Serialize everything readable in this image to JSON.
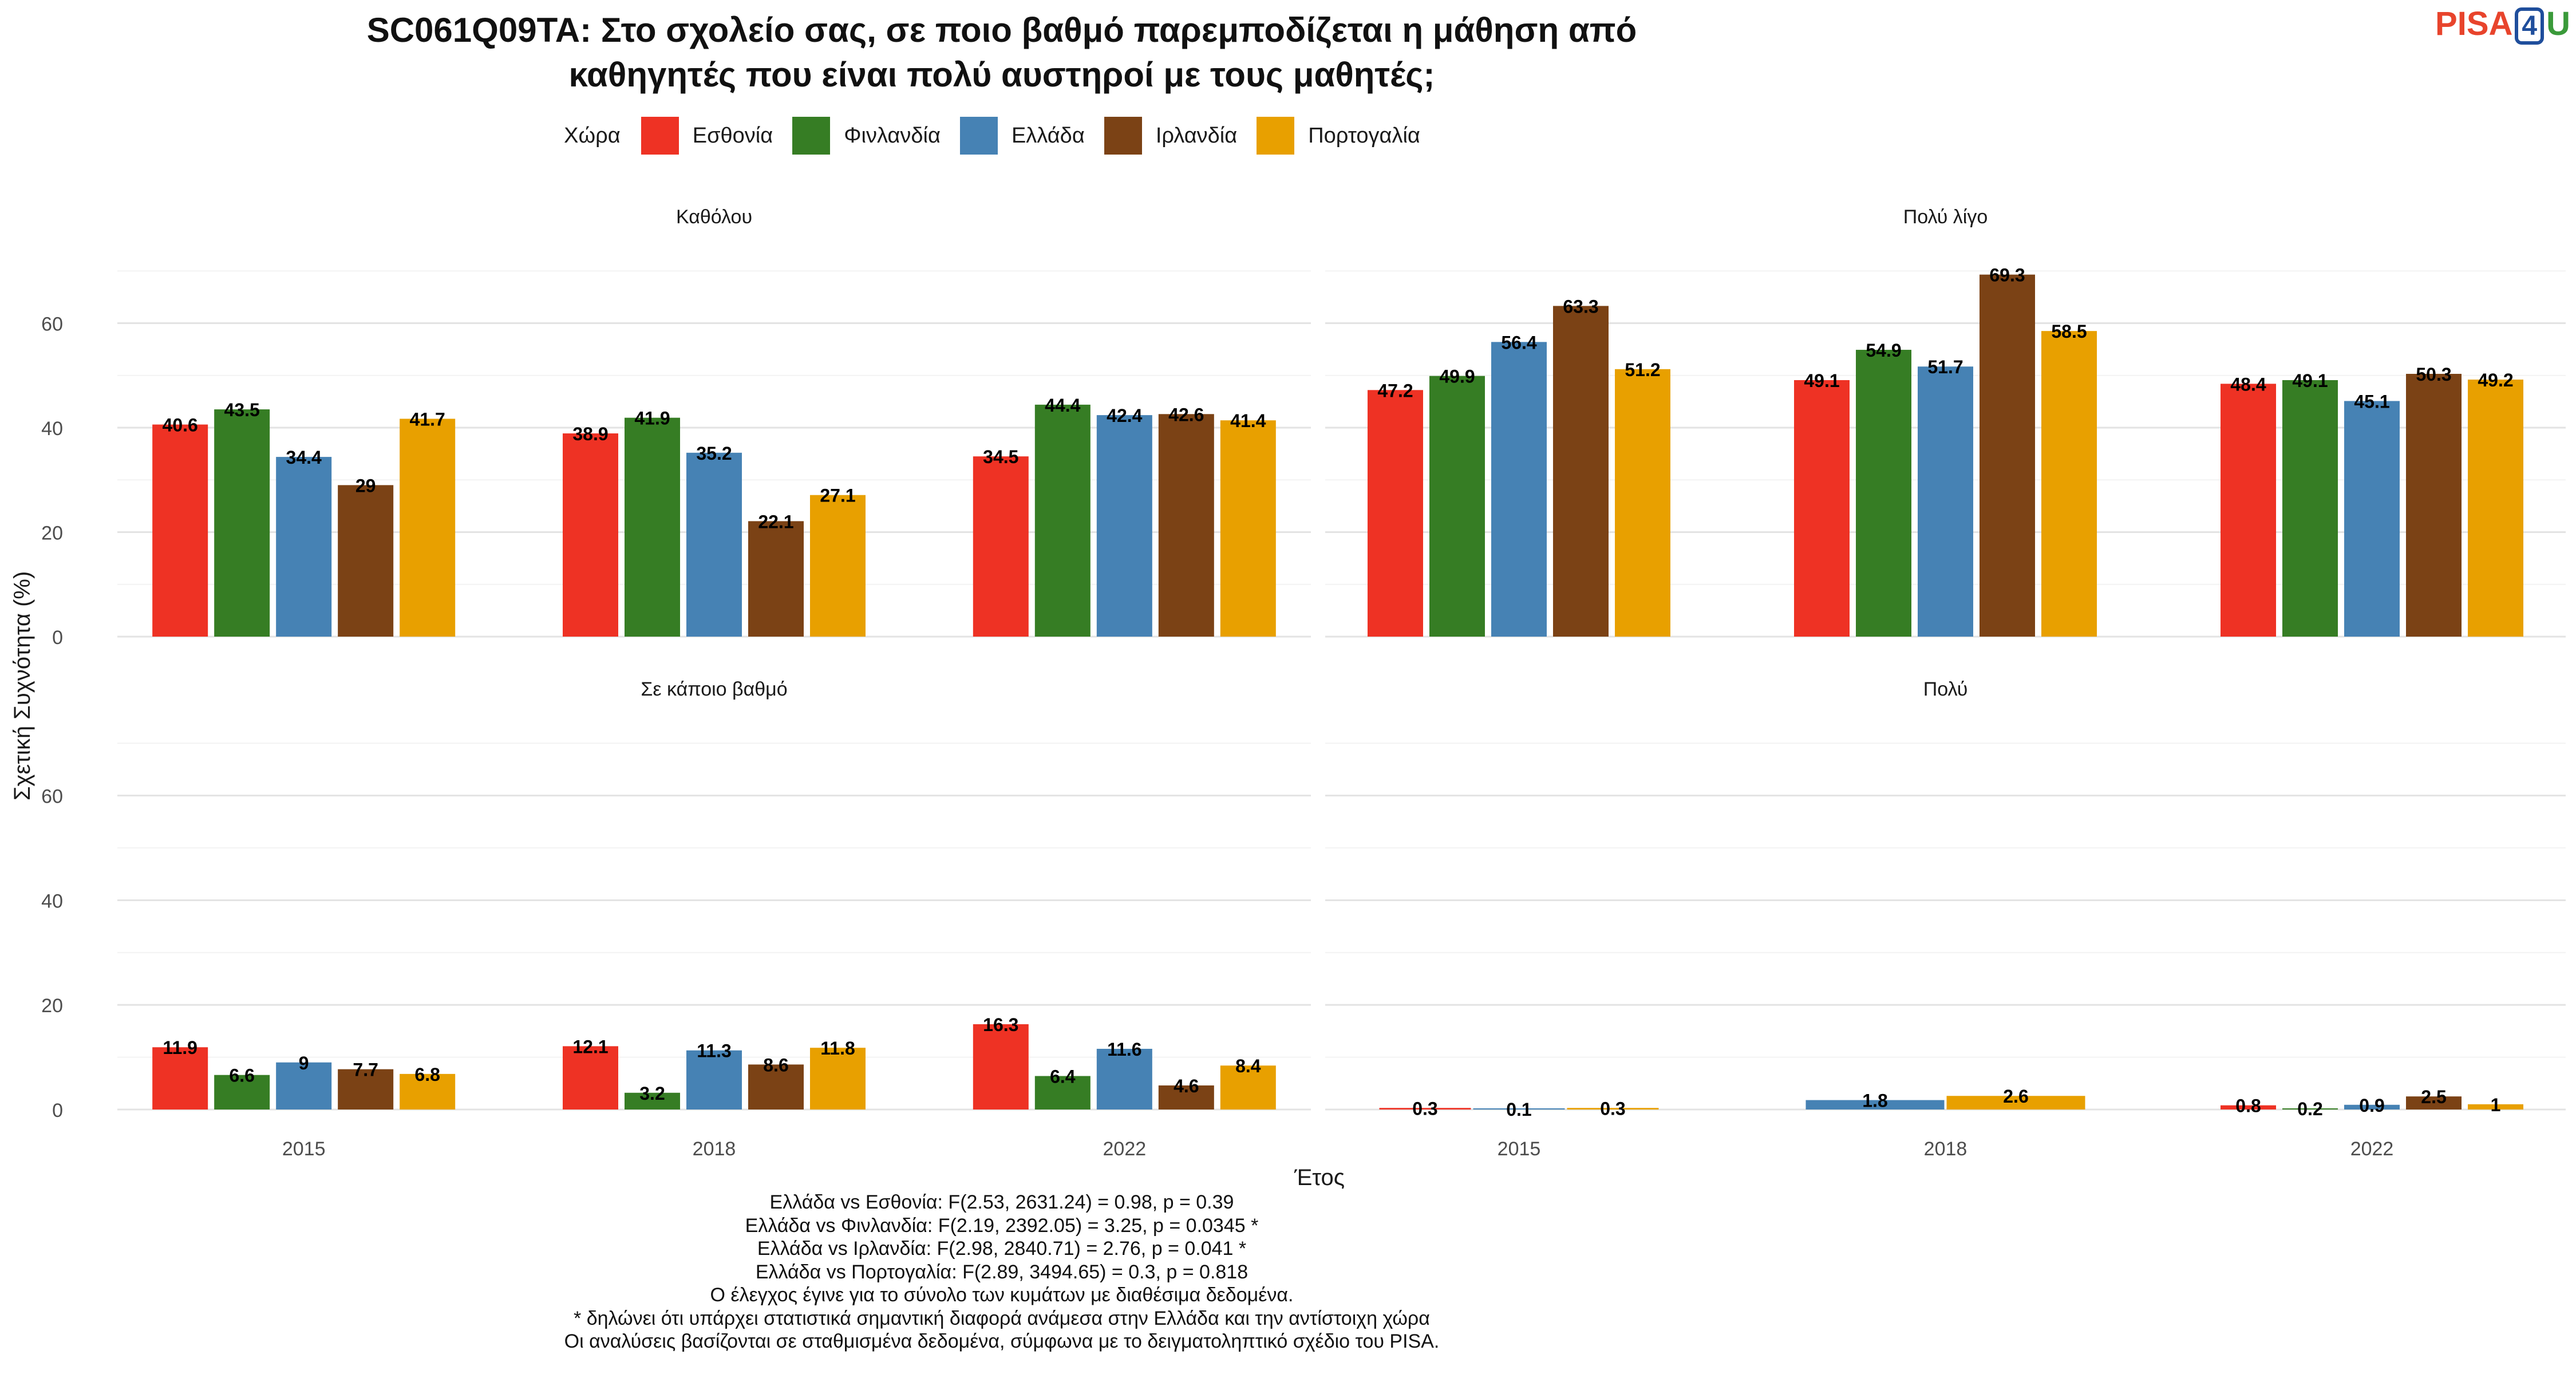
{
  "title_lines": [
    "SC061Q09TA: Στο σχολείο σας, σε ποιο βαθμό παρεμποδίζεται η μάθηση από",
    "καθηγητές που είναι πολύ αυστηροί με τους μαθητές;"
  ],
  "logo": {
    "left": "PISA",
    "boxed": "4",
    "right": "U"
  },
  "legend": {
    "title": "Χώρα",
    "items": [
      {
        "name": "Εσθονία",
        "color": "#EE3224"
      },
      {
        "name": "Φινλανδία",
        "color": "#367D24"
      },
      {
        "name": "Ελλάδα",
        "color": "#4682B4"
      },
      {
        "name": "Ιρλανδία",
        "color": "#7B4215"
      },
      {
        "name": "Πορτογαλία",
        "color": "#E8A000"
      }
    ]
  },
  "chart_data": {
    "type": "bar",
    "xlabel": "Έτος",
    "ylabel": "Σχετική Συχνότητα (%)",
    "ylim": [
      0,
      72
    ],
    "yticks": [
      0,
      20,
      40,
      60
    ],
    "grid": true,
    "legend_position": "top",
    "categories": [
      "2015",
      "2018",
      "2022"
    ],
    "series_names": [
      "Εσθονία",
      "Φινλανδία",
      "Ελλάδα",
      "Ιρλανδία",
      "Πορτογαλία"
    ],
    "panels": [
      {
        "title": "Καθόλου",
        "groups": [
          {
            "year": "2015",
            "bars": [
              {
                "country": "Εσθονία",
                "value": 40.6
              },
              {
                "country": "Φινλανδία",
                "value": 43.5
              },
              {
                "country": "Ελλάδα",
                "value": 34.4
              },
              {
                "country": "Ιρλανδία",
                "value": 29
              },
              {
                "country": "Πορτογαλία",
                "value": 41.7
              }
            ]
          },
          {
            "year": "2018",
            "bars": [
              {
                "country": "Εσθονία",
                "value": 38.9
              },
              {
                "country": "Φινλανδία",
                "value": 41.9
              },
              {
                "country": "Ελλάδα",
                "value": 35.2
              },
              {
                "country": "Ιρλανδία",
                "value": 22.1
              },
              {
                "country": "Πορτογαλία",
                "value": 27.1
              }
            ]
          },
          {
            "year": "2022",
            "bars": [
              {
                "country": "Εσθονία",
                "value": 34.5
              },
              {
                "country": "Φινλανδία",
                "value": 44.4
              },
              {
                "country": "Ελλάδα",
                "value": 42.4
              },
              {
                "country": "Ιρλανδία",
                "value": 42.6
              },
              {
                "country": "Πορτογαλία",
                "value": 41.4
              }
            ]
          }
        ]
      },
      {
        "title": "Πολύ λίγο",
        "groups": [
          {
            "year": "2015",
            "bars": [
              {
                "country": "Εσθονία",
                "value": 47.2
              },
              {
                "country": "Φινλανδία",
                "value": 49.9
              },
              {
                "country": "Ελλάδα",
                "value": 56.4
              },
              {
                "country": "Ιρλανδία",
                "value": 63.3
              },
              {
                "country": "Πορτογαλία",
                "value": 51.2
              }
            ]
          },
          {
            "year": "2018",
            "bars": [
              {
                "country": "Εσθονία",
                "value": 49.1
              },
              {
                "country": "Φινλανδία",
                "value": 54.9
              },
              {
                "country": "Ελλάδα",
                "value": 51.7
              },
              {
                "country": "Ιρλανδία",
                "value": 69.3
              },
              {
                "country": "Πορτογαλία",
                "value": 58.5
              }
            ]
          },
          {
            "year": "2022",
            "bars": [
              {
                "country": "Εσθονία",
                "value": 48.4
              },
              {
                "country": "Φινλανδία",
                "value": 49.1
              },
              {
                "country": "Ελλάδα",
                "value": 45.1
              },
              {
                "country": "Ιρλανδία",
                "value": 50.3
              },
              {
                "country": "Πορτογαλία",
                "value": 49.2
              }
            ]
          }
        ]
      },
      {
        "title": "Σε κάποιο βαθμό",
        "groups": [
          {
            "year": "2015",
            "bars": [
              {
                "country": "Εσθονία",
                "value": 11.9
              },
              {
                "country": "Φινλανδία",
                "value": 6.6
              },
              {
                "country": "Ελλάδα",
                "value": 9
              },
              {
                "country": "Ιρλανδία",
                "value": 7.7
              },
              {
                "country": "Πορτογαλία",
                "value": 6.8
              }
            ]
          },
          {
            "year": "2018",
            "bars": [
              {
                "country": "Εσθονία",
                "value": 12.1
              },
              {
                "country": "Φινλανδία",
                "value": 3.2
              },
              {
                "country": "Ελλάδα",
                "value": 11.3
              },
              {
                "country": "Ιρλανδία",
                "value": 8.6
              },
              {
                "country": "Πορτογαλία",
                "value": 11.8
              }
            ]
          },
          {
            "year": "2022",
            "bars": [
              {
                "country": "Εσθονία",
                "value": 16.3
              },
              {
                "country": "Φινλανδία",
                "value": 6.4
              },
              {
                "country": "Ελλάδα",
                "value": 11.6
              },
              {
                "country": "Ιρλανδία",
                "value": 4.6
              },
              {
                "country": "Πορτογαλία",
                "value": 8.4
              }
            ]
          }
        ]
      },
      {
        "title": "Πολύ",
        "groups": [
          {
            "year": "2015",
            "bars": [
              {
                "country": "Εσθονία",
                "value": 0.3
              },
              {
                "country": "Ελλάδα",
                "value": 0.1
              },
              {
                "country": "Πορτογαλία",
                "value": 0.3
              }
            ]
          },
          {
            "year": "2018",
            "bars": [
              {
                "country": "Ελλάδα",
                "value": 1.8
              },
              {
                "country": "Πορτογαλία",
                "value": 2.6
              }
            ]
          },
          {
            "year": "2022",
            "bars": [
              {
                "country": "Εσθονία",
                "value": 0.8
              },
              {
                "country": "Φινλανδία",
                "value": 0.2
              },
              {
                "country": "Ελλάδα",
                "value": 0.9
              },
              {
                "country": "Ιρλανδία",
                "value": 2.5
              },
              {
                "country": "Πορτογαλία",
                "value": 1
              }
            ]
          }
        ]
      }
    ]
  },
  "caption_lines": [
    "Ελλάδα vs Εσθονία: F(2.53, 2631.24) = 0.98, p = 0.39",
    "Ελλάδα vs Φινλανδία: F(2.19, 2392.05) = 3.25, p = 0.0345 *",
    "Ελλάδα vs Ιρλανδία: F(2.98, 2840.71) = 2.76, p = 0.041 *",
    "Ελλάδα vs Πορτογαλία: F(2.89, 3494.65) = 0.3, p = 0.818",
    "Ο έλεγχος έγινε για το σύνολο των κυμάτων με διαθέσιμα δεδομένα.",
    "* δηλώνει ότι υπάρχει στατιστικά σημαντική διαφορά ανάμεσα στην Ελλάδα και την αντίστοιχη χώρα",
    "Οι αναλύσεις βασίζονται σε σταθμισμένα δεδομένα, σύμφωνα με το δειγματοληπτικό σχέδιο του PISA."
  ]
}
